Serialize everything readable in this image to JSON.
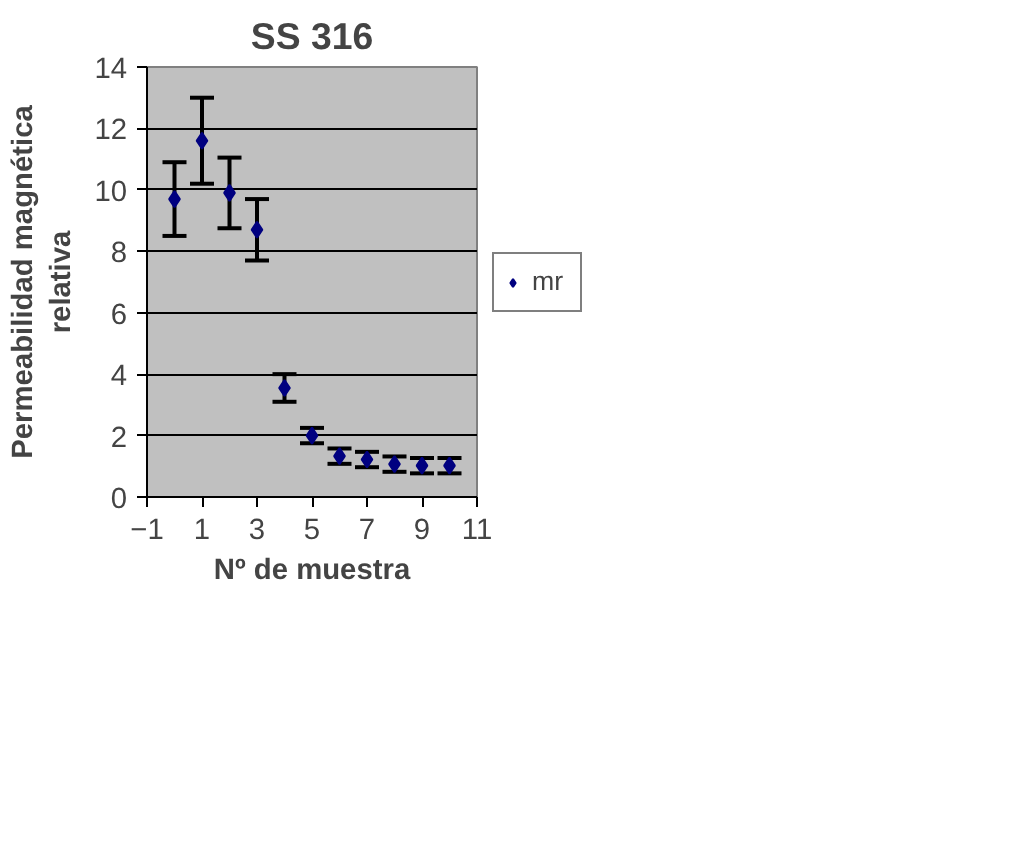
{
  "chart_data": {
    "type": "scatter",
    "title": "SS 316",
    "xlabel": "Nº de muestra",
    "ylabel": "Permeabilidad magnética relativa",
    "x": [
      0,
      1,
      2,
      3,
      4,
      5,
      6,
      7,
      8,
      9,
      10
    ],
    "series": [
      {
        "name": "mr",
        "color": "#000080",
        "values": [
          9.7,
          11.6,
          9.9,
          8.7,
          3.55,
          2.0,
          1.33,
          1.22,
          1.07,
          1.02,
          1.02
        ],
        "errors": [
          1.2,
          1.4,
          1.15,
          1.0,
          0.45,
          0.25,
          0.25,
          0.25,
          0.25,
          0.25,
          0.25
        ]
      }
    ],
    "xlim": [
      -1,
      11
    ],
    "xticks": [
      -1,
      1,
      3,
      5,
      7,
      9,
      11
    ],
    "ylim": [
      0,
      14
    ],
    "yticks": [
      0,
      2,
      4,
      6,
      8,
      10,
      12,
      14
    ],
    "grid": "y",
    "legend": "right",
    "marker": "diamond"
  }
}
